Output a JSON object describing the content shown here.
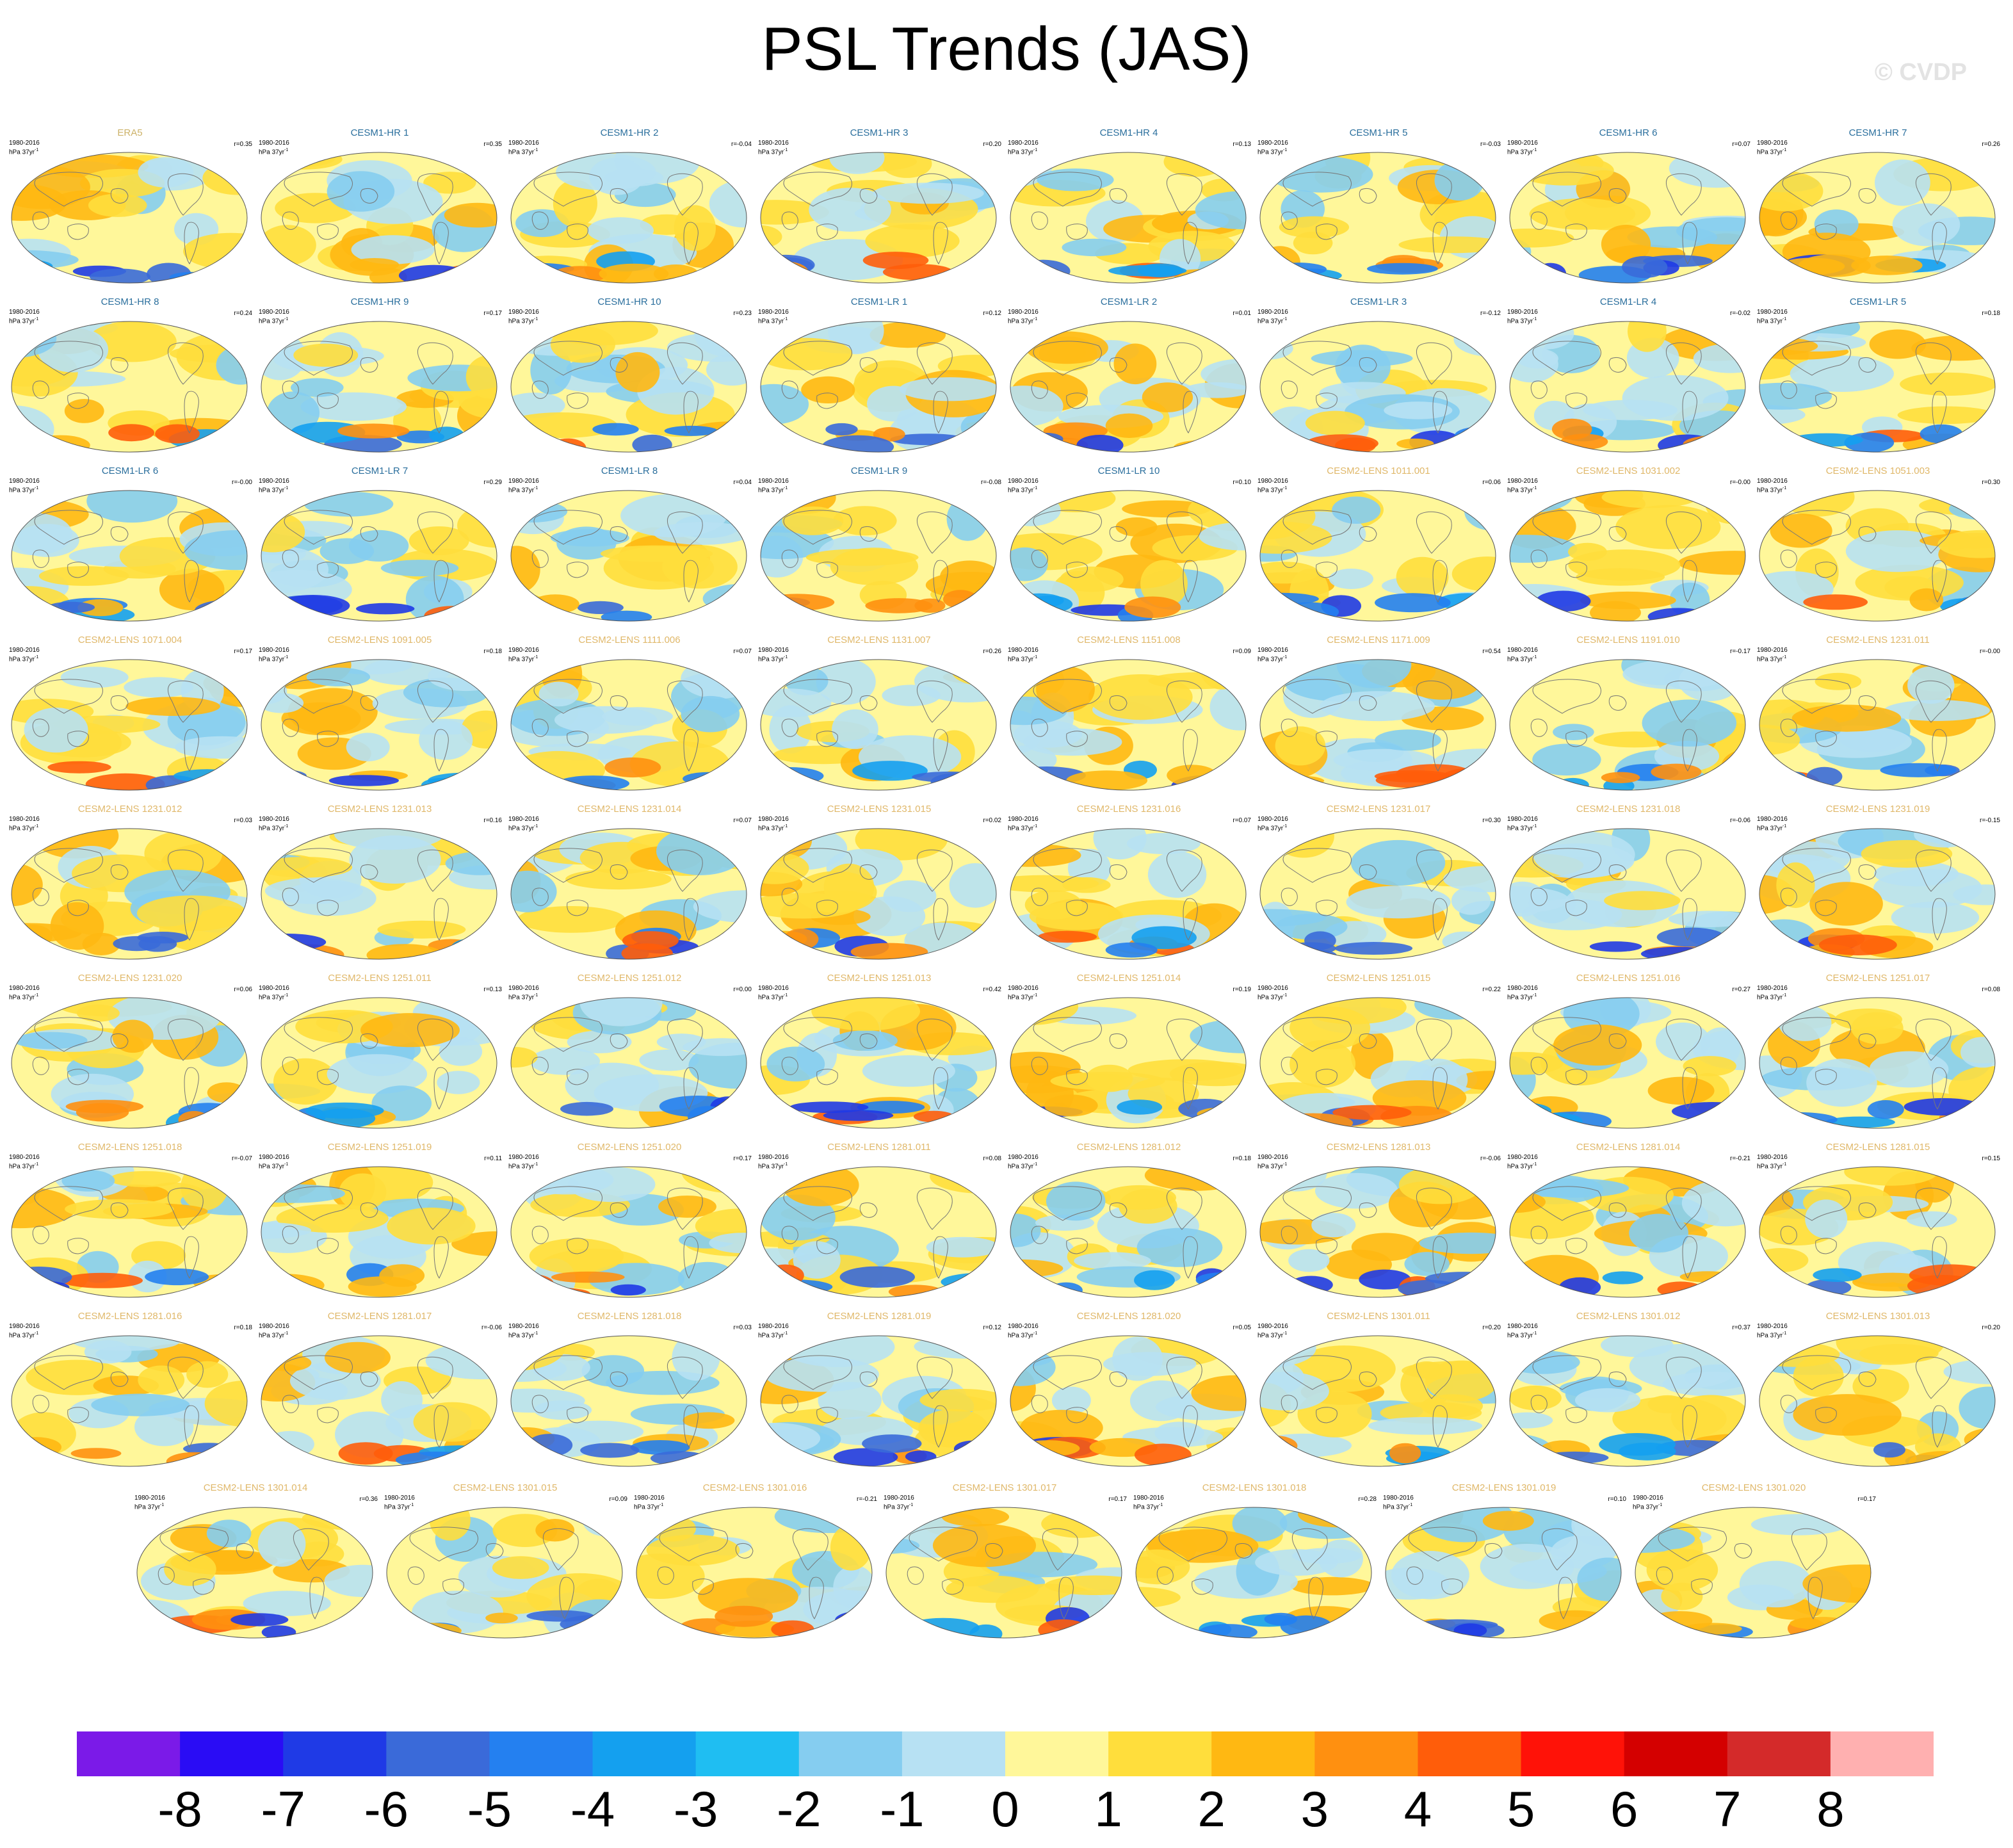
{
  "header": {
    "title": "PSL Trends (JAS)",
    "watermark": "© CVDP"
  },
  "colors": {
    "obs_title": "#cdb36a",
    "hr_lr_title": "#2b6f9d",
    "lens_title": "#e0b86a",
    "coast": "#777777",
    "palette": [
      "#7b1ae8",
      "#2a0cf5",
      "#1f3ae6",
      "#3a6ad9",
      "#2480f0",
      "#14a0ef",
      "#1fbef2",
      "#85cdf0",
      "#b7e1f3",
      "#fff79a",
      "#ffde3c",
      "#ffb812",
      "#ff9010",
      "#ff5d0a",
      "#ff1208",
      "#d40000",
      "#d42a2a",
      "#ffb0b0"
    ]
  },
  "chart_data": {
    "type": "heatmap",
    "title": "PSL Trends (JAS)",
    "colorbar": {
      "levels": [
        -8,
        -7,
        -6,
        -5,
        -4,
        -3,
        -2,
        -1,
        0,
        1,
        2,
        3,
        4,
        5,
        6,
        7,
        8
      ],
      "labels": [
        "-8",
        "-7",
        "-6",
        "-5",
        "-4",
        "-3",
        "-2",
        "-1",
        "0",
        "1",
        "2",
        "3",
        "4",
        "5",
        "6",
        "7",
        "8"
      ]
    },
    "panels": [
      {
        "title": "ERA5",
        "period": "1980-2016",
        "units": "hPa 37yr",
        "corr": "r=0.35",
        "group": "obs"
      },
      {
        "title": "CESM1-HR 1",
        "period": "1980-2016",
        "units": "hPa 37yr",
        "corr": "r=0.35",
        "group": "hr"
      },
      {
        "title": "CESM1-HR 2",
        "period": "1980-2016",
        "units": "hPa 37yr",
        "corr": "r=-0.04",
        "group": "hr"
      },
      {
        "title": "CESM1-HR 3",
        "period": "1980-2016",
        "units": "hPa 37yr",
        "corr": "r=0.20",
        "group": "hr"
      },
      {
        "title": "CESM1-HR 4",
        "period": "1980-2016",
        "units": "hPa 37yr",
        "corr": "r=0.13",
        "group": "hr"
      },
      {
        "title": "CESM1-HR 5",
        "period": "1980-2016",
        "units": "hPa 37yr",
        "corr": "r=-0.03",
        "group": "hr"
      },
      {
        "title": "CESM1-HR 6",
        "period": "1980-2016",
        "units": "hPa 37yr",
        "corr": "r=0.07",
        "group": "hr"
      },
      {
        "title": "CESM1-HR 7",
        "period": "1980-2016",
        "units": "hPa 37yr",
        "corr": "r=0.26",
        "group": "hr"
      },
      {
        "title": "CESM1-HR 8",
        "period": "1980-2016",
        "units": "hPa 37yr",
        "corr": "r=0.24",
        "group": "hr"
      },
      {
        "title": "CESM1-HR 9",
        "period": "1980-2016",
        "units": "hPa 37yr",
        "corr": "r=0.17",
        "group": "hr"
      },
      {
        "title": "CESM1-HR 10",
        "period": "1980-2016",
        "units": "hPa 37yr",
        "corr": "r=0.23",
        "group": "hr"
      },
      {
        "title": "CESM1-LR 1",
        "period": "1980-2016",
        "units": "hPa 37yr",
        "corr": "r=0.12",
        "group": "lr"
      },
      {
        "title": "CESM1-LR 2",
        "period": "1980-2016",
        "units": "hPa 37yr",
        "corr": "r=0.01",
        "group": "lr"
      },
      {
        "title": "CESM1-LR 3",
        "period": "1980-2016",
        "units": "hPa 37yr",
        "corr": "r=-0.12",
        "group": "lr"
      },
      {
        "title": "CESM1-LR 4",
        "period": "1980-2016",
        "units": "hPa 37yr",
        "corr": "r=-0.02",
        "group": "lr"
      },
      {
        "title": "CESM1-LR 5",
        "period": "1980-2016",
        "units": "hPa 37yr",
        "corr": "r=0.18",
        "group": "lr"
      },
      {
        "title": "CESM1-LR 6",
        "period": "1980-2016",
        "units": "hPa 37yr",
        "corr": "r=-0.00",
        "group": "lr"
      },
      {
        "title": "CESM1-LR 7",
        "period": "1980-2016",
        "units": "hPa 37yr",
        "corr": "r=0.29",
        "group": "lr"
      },
      {
        "title": "CESM1-LR 8",
        "period": "1980-2016",
        "units": "hPa 37yr",
        "corr": "r=0.04",
        "group": "lr"
      },
      {
        "title": "CESM1-LR 9",
        "period": "1980-2016",
        "units": "hPa 37yr",
        "corr": "r=-0.08",
        "group": "lr"
      },
      {
        "title": "CESM1-LR 10",
        "period": "1980-2016",
        "units": "hPa 37yr",
        "corr": "r=0.10",
        "group": "lr"
      },
      {
        "title": "CESM2-LENS 1011.001",
        "period": "1980-2016",
        "units": "hPa 37yr",
        "corr": "r=0.06",
        "group": "lens"
      },
      {
        "title": "CESM2-LENS 1031.002",
        "period": "1980-2016",
        "units": "hPa 37yr",
        "corr": "r=-0.00",
        "group": "lens"
      },
      {
        "title": "CESM2-LENS 1051.003",
        "period": "1980-2016",
        "units": "hPa 37yr",
        "corr": "r=0.30",
        "group": "lens"
      },
      {
        "title": "CESM2-LENS 1071.004",
        "period": "1980-2016",
        "units": "hPa 37yr",
        "corr": "r=0.17",
        "group": "lens"
      },
      {
        "title": "CESM2-LENS 1091.005",
        "period": "1980-2016",
        "units": "hPa 37yr",
        "corr": "r=0.18",
        "group": "lens"
      },
      {
        "title": "CESM2-LENS 1111.006",
        "period": "1980-2016",
        "units": "hPa 37yr",
        "corr": "r=0.07",
        "group": "lens"
      },
      {
        "title": "CESM2-LENS 1131.007",
        "period": "1980-2016",
        "units": "hPa 37yr",
        "corr": "r=0.26",
        "group": "lens"
      },
      {
        "title": "CESM2-LENS 1151.008",
        "period": "1980-2016",
        "units": "hPa 37yr",
        "corr": "r=0.09",
        "group": "lens"
      },
      {
        "title": "CESM2-LENS 1171.009",
        "period": "1980-2016",
        "units": "hPa 37yr",
        "corr": "r=0.54",
        "group": "lens"
      },
      {
        "title": "CESM2-LENS 1191.010",
        "period": "1980-2016",
        "units": "hPa 37yr",
        "corr": "r=-0.17",
        "group": "lens"
      },
      {
        "title": "CESM2-LENS 1231.011",
        "period": "1980-2016",
        "units": "hPa 37yr",
        "corr": "r=-0.00",
        "group": "lens"
      },
      {
        "title": "CESM2-LENS 1231.012",
        "period": "1980-2016",
        "units": "hPa 37yr",
        "corr": "r=0.03",
        "group": "lens"
      },
      {
        "title": "CESM2-LENS 1231.013",
        "period": "1980-2016",
        "units": "hPa 37yr",
        "corr": "r=0.16",
        "group": "lens"
      },
      {
        "title": "CESM2-LENS 1231.014",
        "period": "1980-2016",
        "units": "hPa 37yr",
        "corr": "r=0.07",
        "group": "lens"
      },
      {
        "title": "CESM2-LENS 1231.015",
        "period": "1980-2016",
        "units": "hPa 37yr",
        "corr": "r=0.02",
        "group": "lens"
      },
      {
        "title": "CESM2-LENS 1231.016",
        "period": "1980-2016",
        "units": "hPa 37yr",
        "corr": "r=0.07",
        "group": "lens"
      },
      {
        "title": "CESM2-LENS 1231.017",
        "period": "1980-2016",
        "units": "hPa 37yr",
        "corr": "r=0.30",
        "group": "lens"
      },
      {
        "title": "CESM2-LENS 1231.018",
        "period": "1980-2016",
        "units": "hPa 37yr",
        "corr": "r=-0.06",
        "group": "lens"
      },
      {
        "title": "CESM2-LENS 1231.019",
        "period": "1980-2016",
        "units": "hPa 37yr",
        "corr": "r=-0.15",
        "group": "lens"
      },
      {
        "title": "CESM2-LENS 1231.020",
        "period": "1980-2016",
        "units": "hPa 37yr",
        "corr": "r=0.06",
        "group": "lens"
      },
      {
        "title": "CESM2-LENS 1251.011",
        "period": "1980-2016",
        "units": "hPa 37yr",
        "corr": "r=0.13",
        "group": "lens"
      },
      {
        "title": "CESM2-LENS 1251.012",
        "period": "1980-2016",
        "units": "hPa 37yr",
        "corr": "r=0.00",
        "group": "lens"
      },
      {
        "title": "CESM2-LENS 1251.013",
        "period": "1980-2016",
        "units": "hPa 37yr",
        "corr": "r=0.42",
        "group": "lens"
      },
      {
        "title": "CESM2-LENS 1251.014",
        "period": "1980-2016",
        "units": "hPa 37yr",
        "corr": "r=0.19",
        "group": "lens"
      },
      {
        "title": "CESM2-LENS 1251.015",
        "period": "1980-2016",
        "units": "hPa 37yr",
        "corr": "r=0.22",
        "group": "lens"
      },
      {
        "title": "CESM2-LENS 1251.016",
        "period": "1980-2016",
        "units": "hPa 37yr",
        "corr": "r=0.27",
        "group": "lens"
      },
      {
        "title": "CESM2-LENS 1251.017",
        "period": "1980-2016",
        "units": "hPa 37yr",
        "corr": "r=0.08",
        "group": "lens"
      },
      {
        "title": "CESM2-LENS 1251.018",
        "period": "1980-2016",
        "units": "hPa 37yr",
        "corr": "r=-0.07",
        "group": "lens"
      },
      {
        "title": "CESM2-LENS 1251.019",
        "period": "1980-2016",
        "units": "hPa 37yr",
        "corr": "r=0.11",
        "group": "lens"
      },
      {
        "title": "CESM2-LENS 1251.020",
        "period": "1980-2016",
        "units": "hPa 37yr",
        "corr": "r=0.17",
        "group": "lens"
      },
      {
        "title": "CESM2-LENS 1281.011",
        "period": "1980-2016",
        "units": "hPa 37yr",
        "corr": "r=0.08",
        "group": "lens"
      },
      {
        "title": "CESM2-LENS 1281.012",
        "period": "1980-2016",
        "units": "hPa 37yr",
        "corr": "r=0.18",
        "group": "lens"
      },
      {
        "title": "CESM2-LENS 1281.013",
        "period": "1980-2016",
        "units": "hPa 37yr",
        "corr": "r=-0.06",
        "group": "lens"
      },
      {
        "title": "CESM2-LENS 1281.014",
        "period": "1980-2016",
        "units": "hPa 37yr",
        "corr": "r=-0.21",
        "group": "lens"
      },
      {
        "title": "CESM2-LENS 1281.015",
        "period": "1980-2016",
        "units": "hPa 37yr",
        "corr": "r=0.15",
        "group": "lens"
      },
      {
        "title": "CESM2-LENS 1281.016",
        "period": "1980-2016",
        "units": "hPa 37yr",
        "corr": "r=0.18",
        "group": "lens"
      },
      {
        "title": "CESM2-LENS 1281.017",
        "period": "1980-2016",
        "units": "hPa 37yr",
        "corr": "r=-0.06",
        "group": "lens"
      },
      {
        "title": "CESM2-LENS 1281.018",
        "period": "1980-2016",
        "units": "hPa 37yr",
        "corr": "r=0.03",
        "group": "lens"
      },
      {
        "title": "CESM2-LENS 1281.019",
        "period": "1980-2016",
        "units": "hPa 37yr",
        "corr": "r=0.12",
        "group": "lens"
      },
      {
        "title": "CESM2-LENS 1281.020",
        "period": "1980-2016",
        "units": "hPa 37yr",
        "corr": "r=0.05",
        "group": "lens"
      },
      {
        "title": "CESM2-LENS 1301.011",
        "period": "1980-2016",
        "units": "hPa 37yr",
        "corr": "r=0.20",
        "group": "lens"
      },
      {
        "title": "CESM2-LENS 1301.012",
        "period": "1980-2016",
        "units": "hPa 37yr",
        "corr": "r=0.37",
        "group": "lens"
      },
      {
        "title": "CESM2-LENS 1301.013",
        "period": "1980-2016",
        "units": "hPa 37yr",
        "corr": "r=0.20",
        "group": "lens"
      },
      {
        "title": "CESM2-LENS 1301.014",
        "period": "1980-2016",
        "units": "hPa 37yr",
        "corr": "r=0.36",
        "group": "lens"
      },
      {
        "title": "CESM2-LENS 1301.015",
        "period": "1980-2016",
        "units": "hPa 37yr",
        "corr": "r=0.09",
        "group": "lens"
      },
      {
        "title": "CESM2-LENS 1301.016",
        "period": "1980-2016",
        "units": "hPa 37yr",
        "corr": "r=-0.21",
        "group": "lens"
      },
      {
        "title": "CESM2-LENS 1301.017",
        "period": "1980-2016",
        "units": "hPa 37yr",
        "corr": "r=0.17",
        "group": "lens"
      },
      {
        "title": "CESM2-LENS 1301.018",
        "period": "1980-2016",
        "units": "hPa 37yr",
        "corr": "r=0.28",
        "group": "lens"
      },
      {
        "title": "CESM2-LENS 1301.019",
        "period": "1980-2016",
        "units": "hPa 37yr",
        "corr": "r=0.10",
        "group": "lens"
      },
      {
        "title": "CESM2-LENS 1301.020",
        "period": "1980-2016",
        "units": "hPa 37yr",
        "corr": "r=0.17",
        "group": "lens"
      }
    ]
  }
}
